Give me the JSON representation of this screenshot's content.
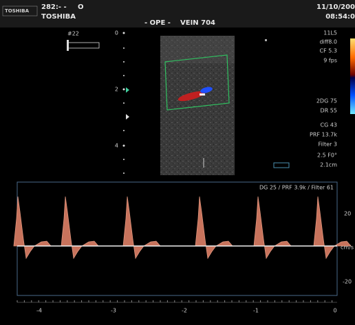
{
  "header": {
    "logo": "TOSHIBA",
    "system_id": "282:- -",
    "marker": "O",
    "brand": "TOSHIBA",
    "mode": "- OPE -",
    "study": "VEIN 704",
    "date": "11/10/200",
    "time": "08:54:0"
  },
  "image": {
    "preset": "#22",
    "depth_labels": [
      "0",
      "2",
      "4"
    ]
  },
  "parameters": {
    "top": [
      "11L5",
      "diff8.0",
      "CF 5.3",
      "9 fps"
    ],
    "bottom": [
      "2DG 75",
      "DR 55",
      "CG 43",
      "PRF 13.7k",
      "Filter 3",
      "2.5  F0°",
      "2.1cm"
    ]
  },
  "spectral": {
    "settings": "DG 25 /  PRF 3.9k  / Filter 61",
    "velocity_labels": [
      "20",
      "cm/s",
      "-20"
    ],
    "time_labels": [
      "-4",
      "-3",
      "-2",
      "-1",
      "0"
    ]
  }
}
